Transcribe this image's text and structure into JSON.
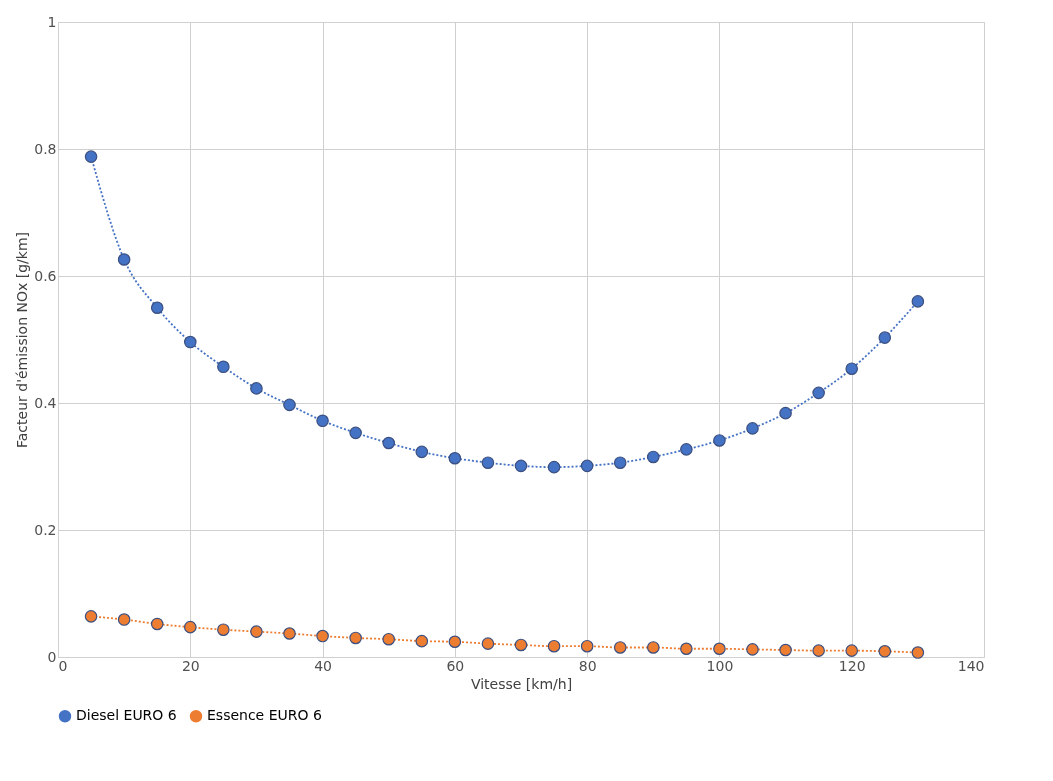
{
  "chart_data": {
    "type": "line",
    "xlabel": "Vitesse [km/h]",
    "ylabel": "Facteur d'émission NOx [g/km]",
    "x": [
      5,
      10,
      15,
      20,
      25,
      30,
      35,
      40,
      45,
      50,
      55,
      60,
      65,
      70,
      75,
      80,
      85,
      90,
      95,
      100,
      105,
      110,
      115,
      120,
      125,
      130
    ],
    "series": [
      {
        "name": "Diesel EURO 6",
        "color": "#4472c4",
        "values": [
          0.788,
          0.626,
          0.55,
          0.496,
          0.457,
          0.423,
          0.397,
          0.372,
          0.353,
          0.337,
          0.323,
          0.313,
          0.306,
          0.301,
          0.299,
          0.301,
          0.306,
          0.315,
          0.327,
          0.341,
          0.36,
          0.384,
          0.416,
          0.454,
          0.503,
          0.56
        ]
      },
      {
        "name": "Essence EURO 6",
        "color": "#ed7d31",
        "values": [
          0.064,
          0.059,
          0.052,
          0.047,
          0.043,
          0.04,
          0.037,
          0.033,
          0.03,
          0.028,
          0.025,
          0.024,
          0.021,
          0.019,
          0.017,
          0.017,
          0.015,
          0.015,
          0.013,
          0.013,
          0.012,
          0.011,
          0.01,
          0.01,
          0.009,
          0.007
        ]
      }
    ],
    "xlim": [
      0,
      140
    ],
    "xticks": [
      0,
      20,
      40,
      60,
      80,
      100,
      120,
      140
    ],
    "ylim": [
      0,
      1
    ],
    "yticks": [
      0,
      0.2,
      0.4,
      0.6,
      0.8,
      1
    ],
    "grid": true,
    "legend": "bottom",
    "marker": "circle",
    "line_style": "dotted"
  }
}
